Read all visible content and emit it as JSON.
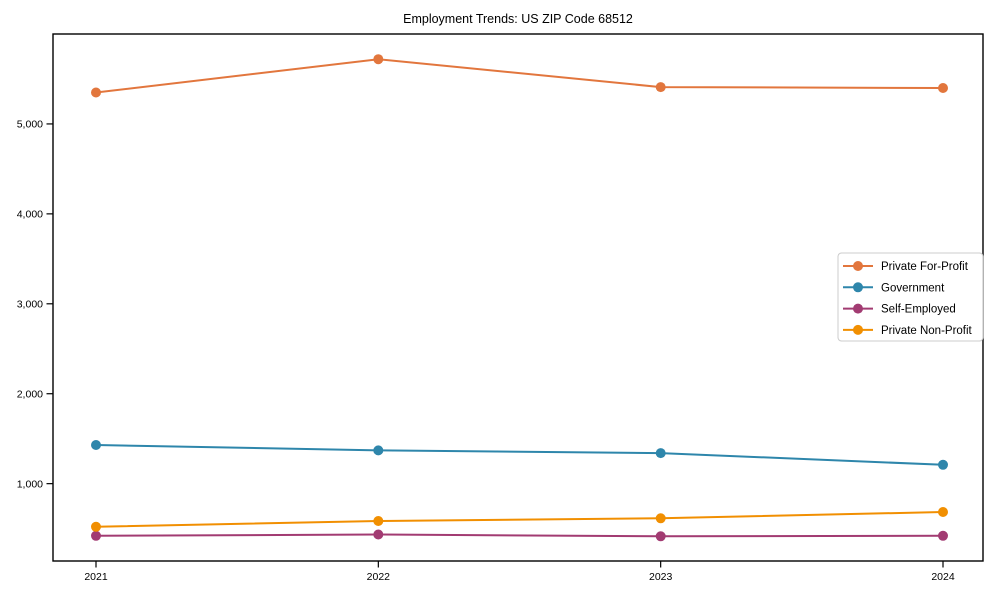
{
  "title": "Employment Trends: US ZIP Code 68512",
  "chart_data": {
    "type": "line",
    "title": "Employment Trends: US ZIP Code 68512",
    "xlabel": "",
    "ylabel": "",
    "x": [
      "2021",
      "2022",
      "2023",
      "2024"
    ],
    "series": [
      {
        "name": "Private For-Profit",
        "color": "#E2763D",
        "values": [
          5350,
          5720,
          5410,
          5400
        ]
      },
      {
        "name": "Government",
        "color": "#2E86AB",
        "values": [
          1430,
          1370,
          1340,
          1210
        ]
      },
      {
        "name": "Self-Employed",
        "color": "#A23B72",
        "values": [
          420,
          435,
          415,
          420
        ]
      },
      {
        "name": "Private Non-Profit",
        "color": "#F18F01",
        "values": [
          520,
          585,
          615,
          685
        ]
      }
    ],
    "ylim": [
      140,
      6000
    ],
    "yticks": [
      1000,
      2000,
      3000,
      4000,
      5000
    ],
    "ytick_labels": [
      "1,000",
      "2,000",
      "3,000",
      "4,000",
      "5,000"
    ],
    "grid": false,
    "legend_position": "center right",
    "plot_border_color": "#000000",
    "background_color": "#ffffff"
  }
}
